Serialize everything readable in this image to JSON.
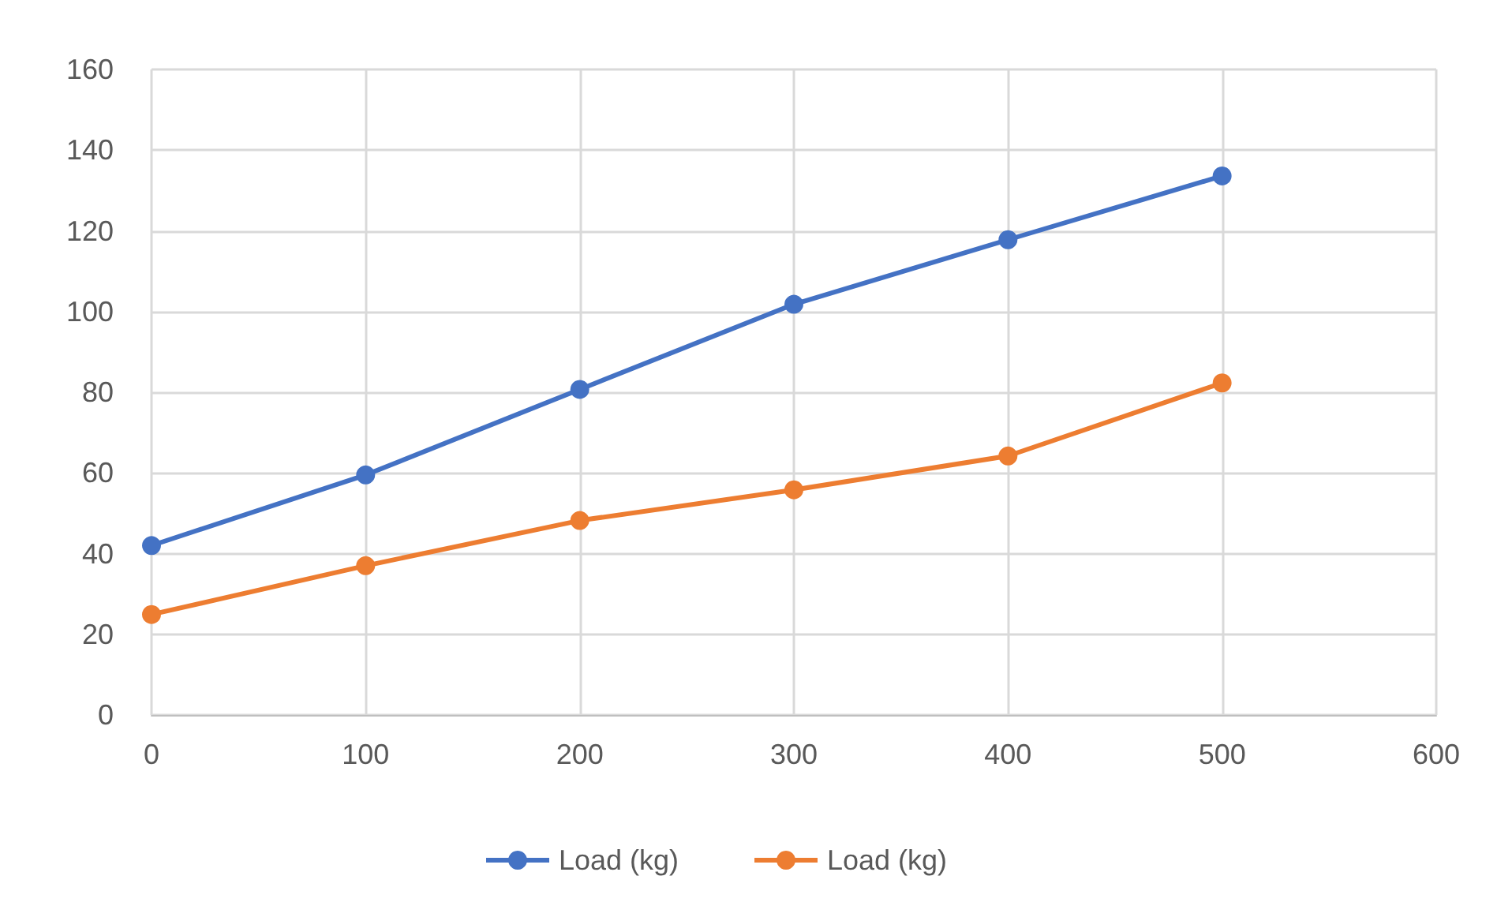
{
  "chart_data": {
    "type": "line",
    "x": [
      0,
      100,
      200,
      300,
      400,
      500
    ],
    "series": [
      {
        "name": "Load (kg)",
        "color": "#4472c4",
        "values": [
          42,
          59.5,
          80.7,
          101.8,
          117.8,
          133.6
        ]
      },
      {
        "name": "Load (kg)",
        "color": "#ed7d31",
        "values": [
          24.9,
          37,
          48.2,
          55.8,
          64.2,
          82.3
        ]
      }
    ],
    "xlim": [
      0,
      600
    ],
    "xticks": [
      0,
      100,
      200,
      300,
      400,
      500,
      600
    ],
    "ylim": [
      0,
      160
    ],
    "yticks": [
      0,
      20,
      40,
      60,
      80,
      100,
      120,
      140,
      160
    ],
    "grid": true,
    "legend": "bottom",
    "marker": "circle",
    "line_style": "solid"
  }
}
